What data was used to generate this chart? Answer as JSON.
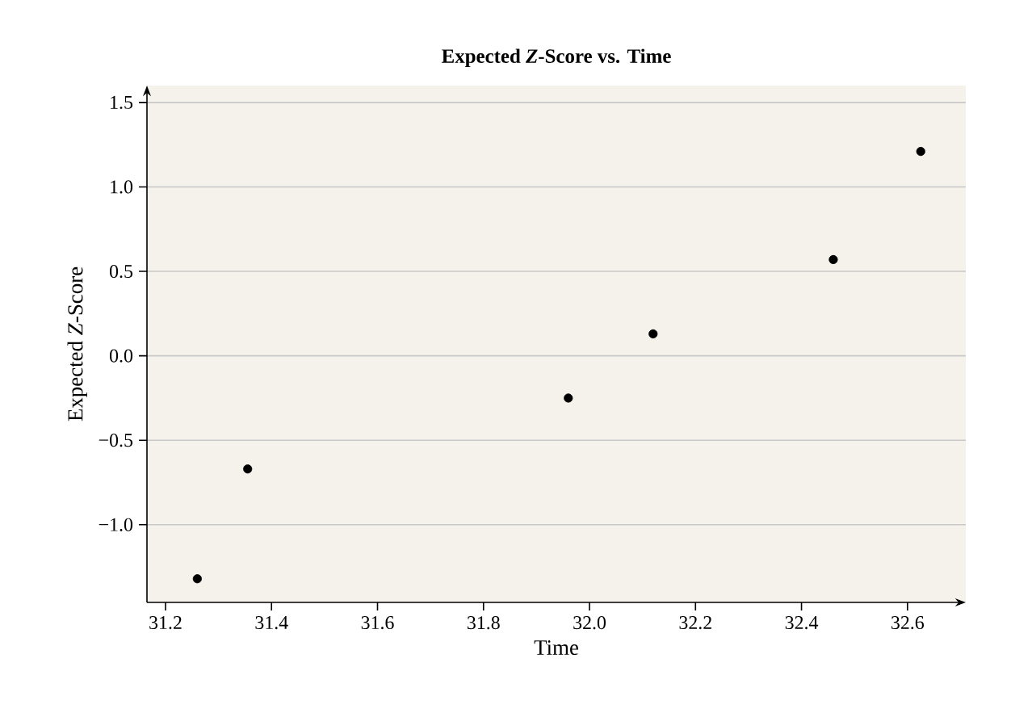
{
  "chart_data": {
    "type": "scatter",
    "title": "Expected *Z*-Score vs. Time",
    "xlabel": "Time",
    "ylabel": "Expected *Z*-Score",
    "x": [
      31.26,
      31.355,
      31.96,
      32.12,
      32.46,
      32.625
    ],
    "values": [
      -1.32,
      -0.67,
      -0.25,
      0.13,
      0.57,
      1.21
    ],
    "color": "#000000",
    "marker": "circle",
    "grid": "y",
    "xlim": [
      31.165,
      32.71
    ],
    "ylim": [
      -1.46,
      1.6
    ],
    "xticks": [
      {
        "value": 31.2,
        "label": "31.2"
      },
      {
        "value": 31.4,
        "label": "31.4"
      },
      {
        "value": 31.6,
        "label": "31.6"
      },
      {
        "value": 31.8,
        "label": "31.8"
      },
      {
        "value": 32.0,
        "label": "32.0"
      },
      {
        "value": 32.2,
        "label": "32.2"
      },
      {
        "value": 32.4,
        "label": "32.4"
      },
      {
        "value": 32.6,
        "label": "32.6"
      }
    ],
    "yticks": [
      {
        "value": -1.0,
        "label": "−1.0"
      },
      {
        "value": -0.5,
        "label": "−0.5"
      },
      {
        "value": 0.0,
        "label": "0.0"
      },
      {
        "value": 0.5,
        "label": "0.5"
      },
      {
        "value": 1.0,
        "label": "1.0"
      },
      {
        "value": 1.5,
        "label": "1.5"
      }
    ]
  }
}
